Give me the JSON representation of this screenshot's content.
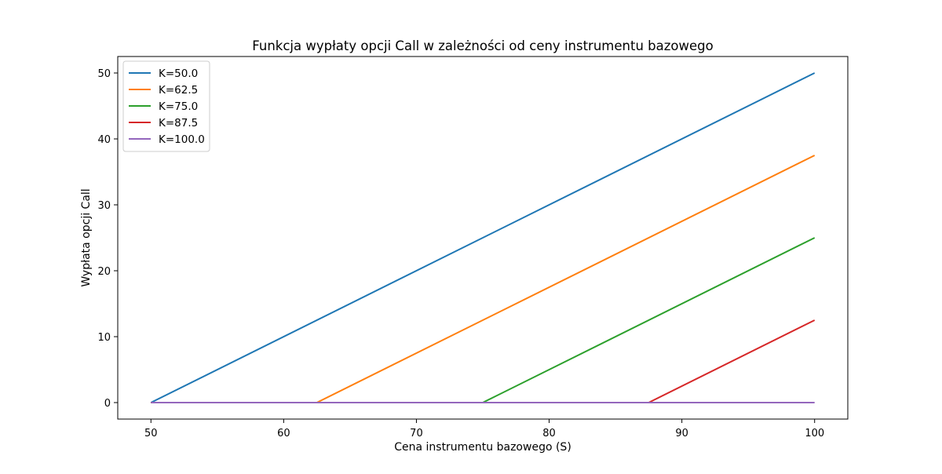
{
  "chart_data": {
    "type": "line",
    "title": "Funkcja wypłaty opcji Call w zależności od ceny instrumentu bazowego",
    "xlabel": "Cena instrumentu bazowego (S)",
    "ylabel": "Wypłata opcji Call",
    "xlim": [
      47.5,
      102.5
    ],
    "ylim": [
      -2.5,
      52.5
    ],
    "xticks": [
      50,
      60,
      70,
      80,
      90,
      100
    ],
    "yticks": [
      0,
      10,
      20,
      30,
      40,
      50
    ],
    "grid": false,
    "legend_position": "top-left",
    "series": [
      {
        "name": "K=50.0",
        "color": "#1f77b4",
        "points": [
          [
            50,
            0
          ],
          [
            100,
            50
          ]
        ]
      },
      {
        "name": "K=62.5",
        "color": "#ff7f0e",
        "points": [
          [
            50,
            0
          ],
          [
            62.5,
            0
          ],
          [
            100,
            37.5
          ]
        ]
      },
      {
        "name": "K=75.0",
        "color": "#2ca02c",
        "points": [
          [
            50,
            0
          ],
          [
            75,
            0
          ],
          [
            100,
            25
          ]
        ]
      },
      {
        "name": "K=87.5",
        "color": "#d62728",
        "points": [
          [
            50,
            0
          ],
          [
            87.5,
            0
          ],
          [
            100,
            12.5
          ]
        ]
      },
      {
        "name": "K=100.0",
        "color": "#9467bd",
        "points": [
          [
            50,
            0
          ],
          [
            100,
            0
          ]
        ]
      }
    ]
  }
}
